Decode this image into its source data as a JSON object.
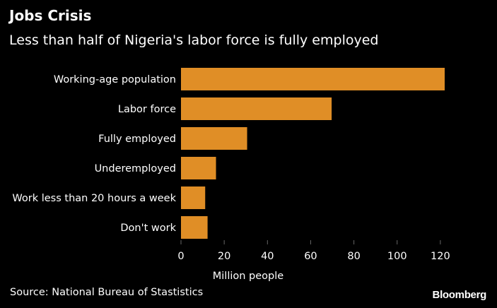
{
  "header": {
    "title": "Jobs Crisis",
    "subtitle": "Less than half of Nigeria's labor force is fully employed"
  },
  "footer": {
    "source": "Source: National Bureau of Stastistics",
    "brand": "Bloomberg"
  },
  "colors": {
    "background": "#000000",
    "bar": "#e08e26",
    "text": "#ffffff",
    "gridline": "#666666"
  },
  "chart_data": {
    "type": "bar",
    "orientation": "horizontal",
    "categories": [
      "Working-age population",
      "Labor force",
      "Fully employed",
      "Underemployed",
      "Work less than 20 hours a week",
      "Don't work"
    ],
    "values": [
      122,
      69.7,
      30.6,
      16.2,
      11.2,
      12.3
    ],
    "xlabel": "Million people",
    "xlim": [
      0,
      122
    ],
    "x_ticks": [
      0,
      20,
      40,
      60,
      80,
      100,
      120
    ],
    "grid": false
  }
}
